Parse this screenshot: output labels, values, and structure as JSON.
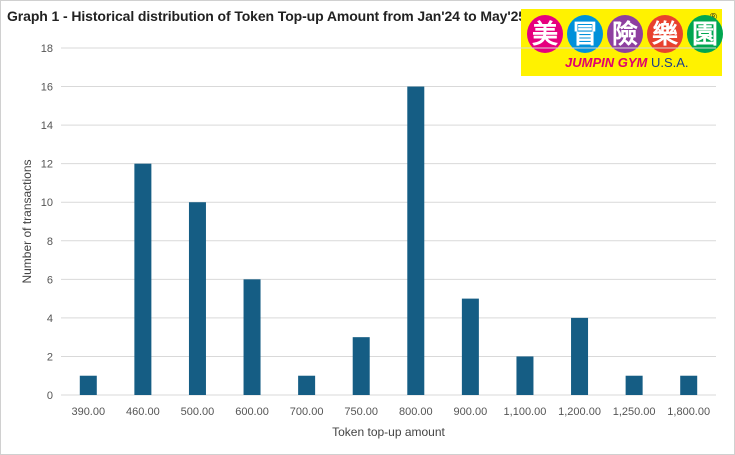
{
  "chart_data": {
    "type": "bar",
    "title": "Graph 1 - Historical distribution of Token Top-up Amount from Jan'24 to May'25",
    "xlabel": "Token top-up amount",
    "ylabel": "Number of transactions",
    "categories": [
      "390.00",
      "460.00",
      "500.00",
      "600.00",
      "700.00",
      "750.00",
      "800.00",
      "900.00",
      "1,100.00",
      "1,200.00",
      "1,250.00",
      "1,800.00"
    ],
    "values": [
      1,
      12,
      10,
      6,
      1,
      3,
      16,
      5,
      2,
      4,
      1,
      1
    ],
    "ylim": [
      0,
      18
    ],
    "yticks": [
      "0",
      "2",
      "4",
      "6",
      "8",
      "10",
      "12",
      "14",
      "16",
      "18"
    ],
    "grid": true,
    "bar_color": "#155d84",
    "grid_color": "#d9d9d9"
  },
  "logo": {
    "chars": [
      "美",
      "冒",
      "險",
      "樂",
      "園"
    ],
    "colors": [
      "#e6007e",
      "#0091da",
      "#8e3fa0",
      "#e8412e",
      "#00a650"
    ],
    "brand": "JUMPIN GYM",
    "country": "U.S.A.",
    "registered": "®"
  }
}
